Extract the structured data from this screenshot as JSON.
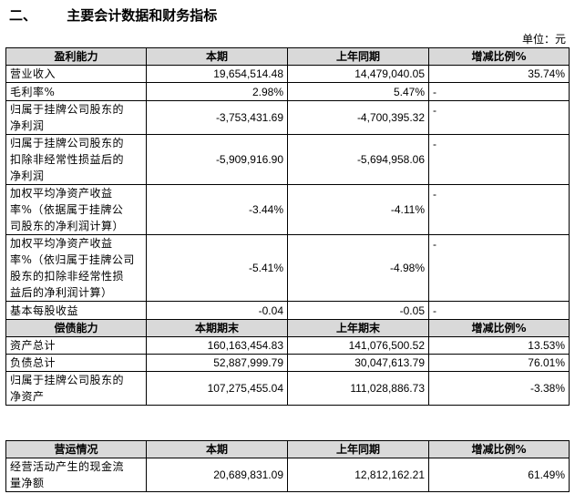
{
  "section": {
    "number": "二、",
    "title": "主要会计数据和财务指标",
    "unit": "单位：元"
  },
  "profit": {
    "headers": [
      "盈利能力",
      "本期",
      "上年同期",
      "增减比例%"
    ],
    "rows": [
      {
        "label": [
          "营业收入"
        ],
        "cur": "19,654,514.48",
        "prev": "14,479,040.05",
        "chg": "35.74%"
      },
      {
        "label": [
          "毛利率%"
        ],
        "cur": "2.98%",
        "prev": "5.47%",
        "chg": "-"
      },
      {
        "label": [
          "归属于挂牌公司股东的",
          "净利润"
        ],
        "cur": "-3,753,431.69",
        "prev": "-4,700,395.32",
        "chg": "-"
      },
      {
        "label": [
          "归属于挂牌公司股东的",
          "扣除非经常性损益后的",
          "净利润"
        ],
        "cur": "-5,909,916.90",
        "prev": "-5,694,958.06",
        "chg": "-"
      },
      {
        "label": [
          "加权平均净资产收益",
          "率%（依据属于挂牌公",
          "司股东的净利润计算）"
        ],
        "cur": "-3.44%",
        "prev": "-4.11%",
        "chg": "-"
      },
      {
        "label": [
          "加权平均净资产收益",
          "率%（依归属于挂牌公司",
          "股东的扣除非经常性损",
          "益后的净利润计算）"
        ],
        "cur": "-5.41%",
        "prev": "-4.98%",
        "chg": "-"
      },
      {
        "label": [
          "基本每股收益"
        ],
        "cur": "-0.04",
        "prev": "-0.05",
        "chg": "-"
      }
    ]
  },
  "solvency": {
    "headers": [
      "偿债能力",
      "本期期末",
      "上年期末",
      "增减比例%"
    ],
    "rows": [
      {
        "label": [
          "资产总计"
        ],
        "cur": "160,163,454.83",
        "prev": "141,076,500.52",
        "chg": "13.53%"
      },
      {
        "label": [
          "负债总计"
        ],
        "cur": "52,887,999.79",
        "prev": "30,047,613.79",
        "chg": "76.01%"
      },
      {
        "label": [
          "归属于挂牌公司股东的",
          "净资产"
        ],
        "cur": "107,275,455.04",
        "prev": "111,028,886.73",
        "chg": "-3.38%"
      }
    ]
  },
  "operation": {
    "headers": [
      "营运情况",
      "本期",
      "上年同期",
      "增减比例%"
    ],
    "rows": [
      {
        "label": [
          "经营活动产生的现金流",
          "量净额"
        ],
        "cur": "20,689,831.09",
        "prev": "12,812,162.21",
        "chg": "61.49%"
      }
    ]
  }
}
